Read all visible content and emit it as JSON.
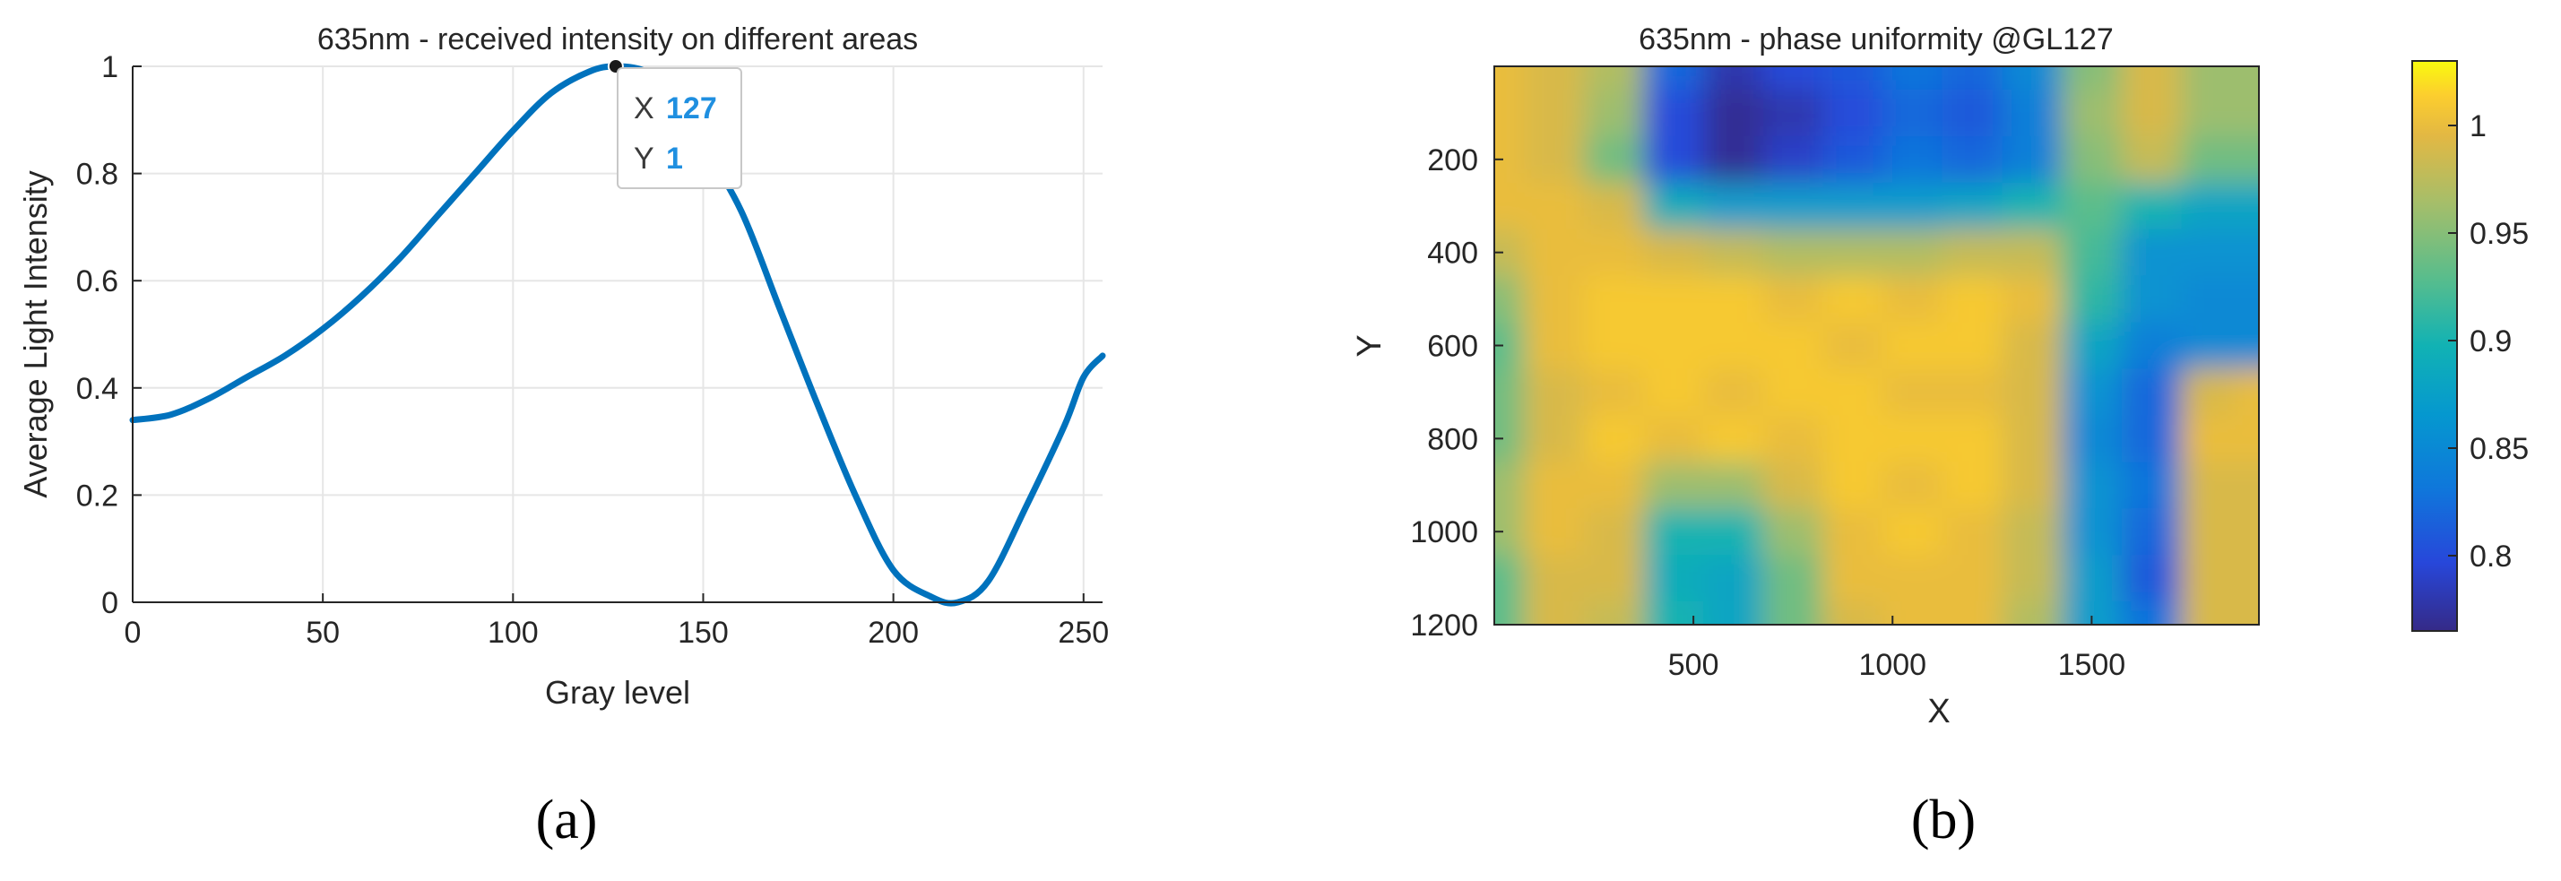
{
  "chart_data": [
    {
      "type": "line",
      "title": "635nm - received intensity on different areas",
      "xlabel": "Gray level",
      "ylabel": "Average Light Intensity",
      "xlim": [
        0,
        255
      ],
      "ylim": [
        0,
        1
      ],
      "xticks": [
        0,
        50,
        100,
        150,
        200,
        250
      ],
      "yticks": [
        0,
        0.2,
        0.4,
        0.6,
        0.8,
        1
      ],
      "xtick_labels": [
        "0",
        "50",
        "100",
        "150",
        "200",
        "250"
      ],
      "ytick_labels": [
        "0",
        "0.2",
        "0.4",
        "0.6",
        "0.8",
        "1"
      ],
      "grid": true,
      "series_color": "#0072BD",
      "series": [
        {
          "x": [
            0,
            10,
            20,
            30,
            40,
            50,
            60,
            70,
            80,
            90,
            100,
            110,
            120,
            127,
            135,
            140,
            150,
            160,
            170,
            180,
            190,
            200,
            210,
            217,
            225,
            235,
            245,
            250,
            255
          ],
          "values": [
            0.34,
            0.35,
            0.38,
            0.42,
            0.46,
            0.51,
            0.57,
            0.64,
            0.72,
            0.8,
            0.88,
            0.95,
            0.99,
            1.0,
            0.99,
            0.95,
            0.85,
            0.73,
            0.55,
            0.37,
            0.2,
            0.06,
            0.01,
            0.0,
            0.04,
            0.18,
            0.33,
            0.42,
            0.46
          ]
        }
      ],
      "datatip": {
        "x_label": "X",
        "y_label": "Y",
        "x": 127,
        "y": 1,
        "x_text": "127",
        "y_text": "1"
      },
      "panel_label": "(a)"
    },
    {
      "type": "heatmap",
      "title": "635nm - phase uniformity @GL127",
      "xlabel": "X",
      "ylabel": "Y",
      "xlim": [
        0,
        1920
      ],
      "ylim": [
        0,
        1200
      ],
      "xticks": [
        500,
        1000,
        1500
      ],
      "yticks": [
        200,
        400,
        600,
        800,
        1000,
        1200
      ],
      "xtick_labels": [
        "500",
        "1000",
        "1500"
      ],
      "ytick_labels": [
        "200",
        "400",
        "600",
        "800",
        "1000",
        "1200"
      ],
      "colorbar": {
        "range": [
          0.765,
          1.03
        ],
        "ticks": [
          0.8,
          0.85,
          0.9,
          0.95,
          1
        ],
        "tick_labels": [
          "0.8",
          "0.85",
          "0.9",
          "0.95",
          "1"
        ],
        "colormap": "parula"
      },
      "grid_x": [
        0,
        150,
        300,
        450,
        600,
        750,
        900,
        1050,
        1200,
        1350,
        1500,
        1650,
        1800,
        1920
      ],
      "grid_y": [
        0,
        100,
        200,
        300,
        400,
        500,
        600,
        700,
        800,
        900,
        1000,
        1100,
        1200
      ],
      "values": [
        [
          1.0,
          0.99,
          0.97,
          0.82,
          0.78,
          0.8,
          0.81,
          0.83,
          0.82,
          0.85,
          0.95,
          0.99,
          0.96,
          0.96
        ],
        [
          1.0,
          0.99,
          0.96,
          0.8,
          0.77,
          0.78,
          0.8,
          0.82,
          0.81,
          0.84,
          0.96,
          0.99,
          0.96,
          0.96
        ],
        [
          1.0,
          0.99,
          0.94,
          0.8,
          0.77,
          0.79,
          0.81,
          0.83,
          0.82,
          0.84,
          0.95,
          0.98,
          0.94,
          0.94
        ],
        [
          1.0,
          1.0,
          0.99,
          0.89,
          0.87,
          0.87,
          0.87,
          0.87,
          0.88,
          0.9,
          0.93,
          0.9,
          0.88,
          0.88
        ],
        [
          0.98,
          1.0,
          1.0,
          0.99,
          0.98,
          0.97,
          0.97,
          0.97,
          0.98,
          0.98,
          0.92,
          0.86,
          0.86,
          0.86
        ],
        [
          0.95,
          1.0,
          1.01,
          1.01,
          1.01,
          1.0,
          1.01,
          1.0,
          1.01,
          1.0,
          0.91,
          0.86,
          0.85,
          0.85
        ],
        [
          0.93,
          1.0,
          1.01,
          1.01,
          1.01,
          1.01,
          1.0,
          1.01,
          1.01,
          0.99,
          0.88,
          0.84,
          0.85,
          0.85
        ],
        [
          0.94,
          0.99,
          1.0,
          1.01,
          1.0,
          1.01,
          1.01,
          1.0,
          1.0,
          0.99,
          0.86,
          0.82,
          0.99,
          1.0
        ],
        [
          0.94,
          0.99,
          1.01,
          1.0,
          1.01,
          1.0,
          1.01,
          1.01,
          1.01,
          0.99,
          0.85,
          0.82,
          1.0,
          1.0
        ],
        [
          0.96,
          1.0,
          1.0,
          0.96,
          0.96,
          0.99,
          1.01,
          1.0,
          1.01,
          0.99,
          0.86,
          0.83,
          0.99,
          0.99
        ],
        [
          0.96,
          1.0,
          0.99,
          0.9,
          0.9,
          0.96,
          1.0,
          1.01,
          1.0,
          0.98,
          0.86,
          0.82,
          0.99,
          0.99
        ],
        [
          0.93,
          0.99,
          0.99,
          0.89,
          0.88,
          0.94,
          1.0,
          1.0,
          1.0,
          0.98,
          0.87,
          0.81,
          0.99,
          0.99
        ],
        [
          0.93,
          0.99,
          0.98,
          0.9,
          0.88,
          0.94,
          0.99,
          1.0,
          1.0,
          0.97,
          0.87,
          0.83,
          0.99,
          0.99
        ]
      ],
      "panel_label": "(b)"
    }
  ]
}
